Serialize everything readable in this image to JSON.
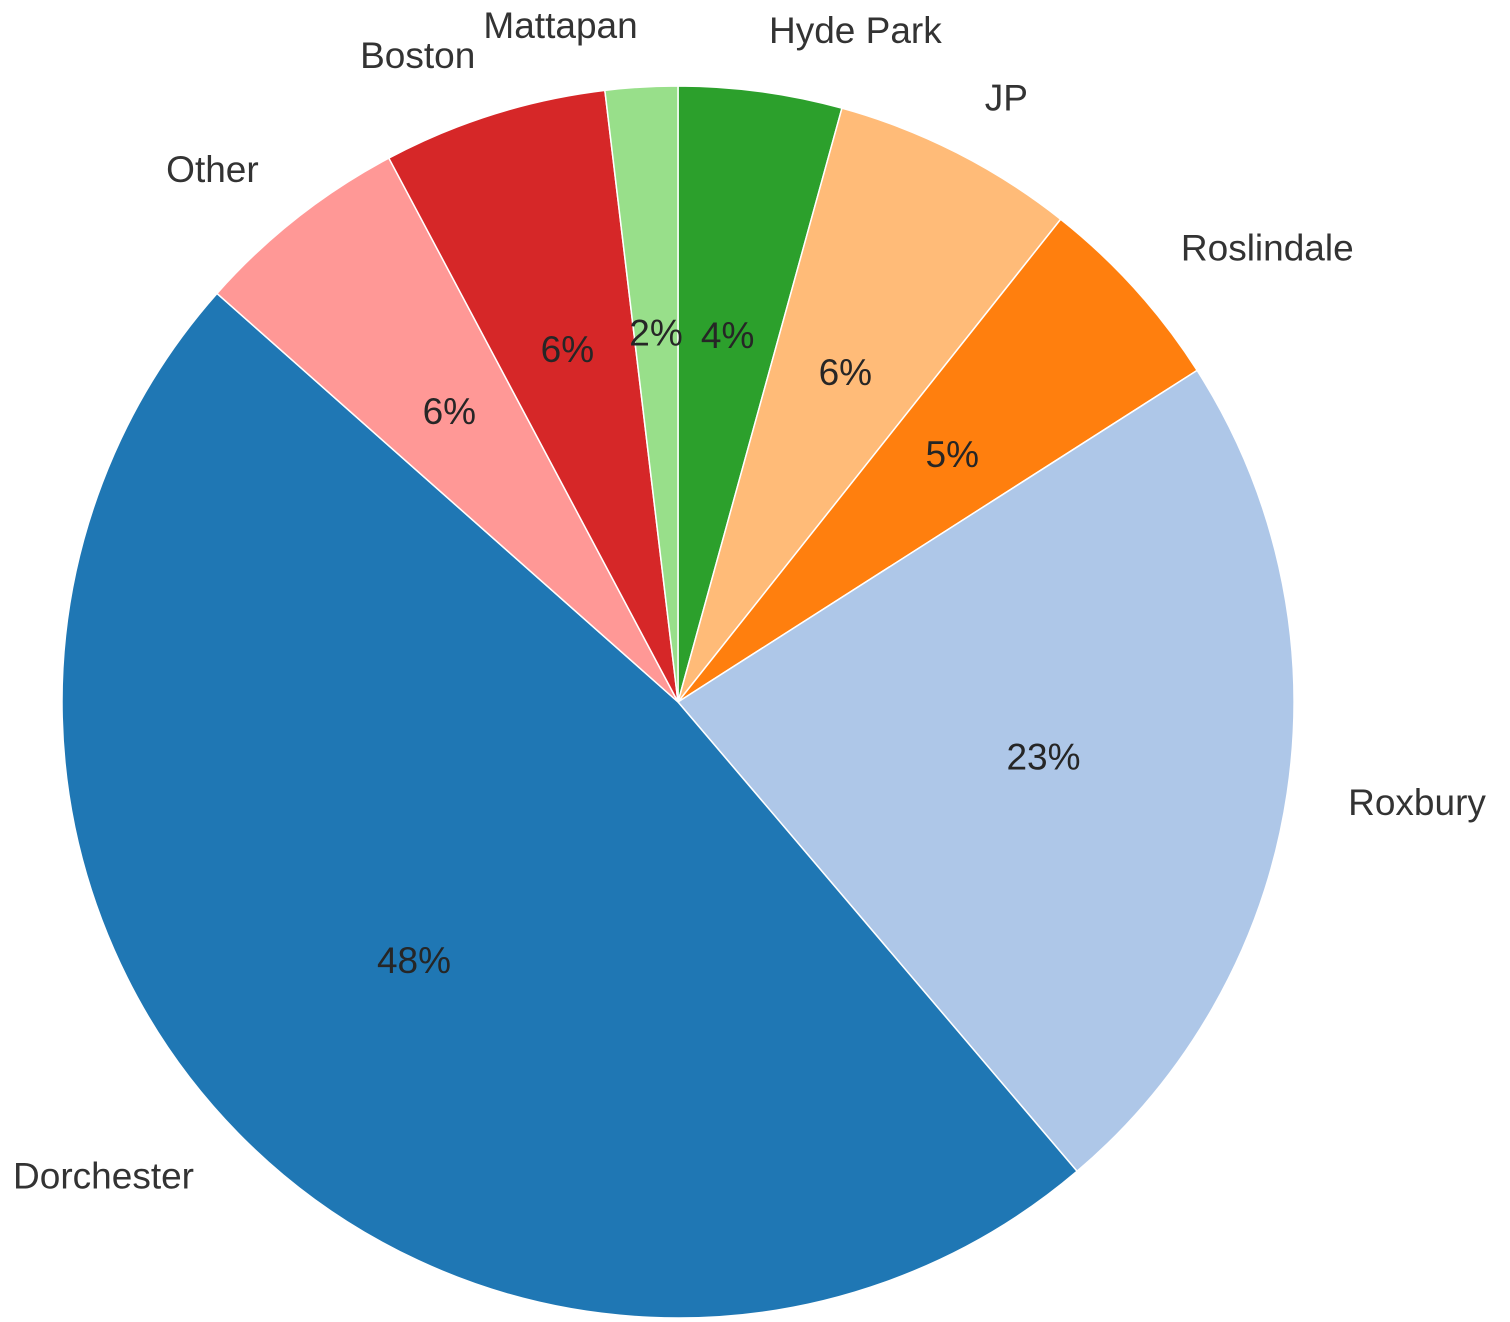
{
  "chart_data": {
    "type": "pie",
    "title": "",
    "start_angle_deg": 90,
    "direction": "clockwise",
    "slices": [
      {
        "label": "Hyde Park",
        "value": 4.3,
        "pct_label": "4%",
        "color": "#2ca02c"
      },
      {
        "label": "JP",
        "value": 6.4,
        "pct_label": "6%",
        "color": "#ffbb78"
      },
      {
        "label": "Roslindale",
        "value": 5.3,
        "pct_label": "5%",
        "color": "#ff7f0e"
      },
      {
        "label": "Roxbury",
        "value": 22.9,
        "pct_label": "23%",
        "color": "#aec7e8"
      },
      {
        "label": "Dorchester",
        "value": 47.9,
        "pct_label": "48%",
        "color": "#1f77b4"
      },
      {
        "label": "Other",
        "value": 5.7,
        "pct_label": "6%",
        "color": "#ff9896"
      },
      {
        "label": "Boston",
        "value": 5.9,
        "pct_label": "6%",
        "color": "#d62728"
      },
      {
        "label": "Mattapan",
        "value": 1.9,
        "pct_label": "2%",
        "color": "#98df8a"
      }
    ]
  }
}
